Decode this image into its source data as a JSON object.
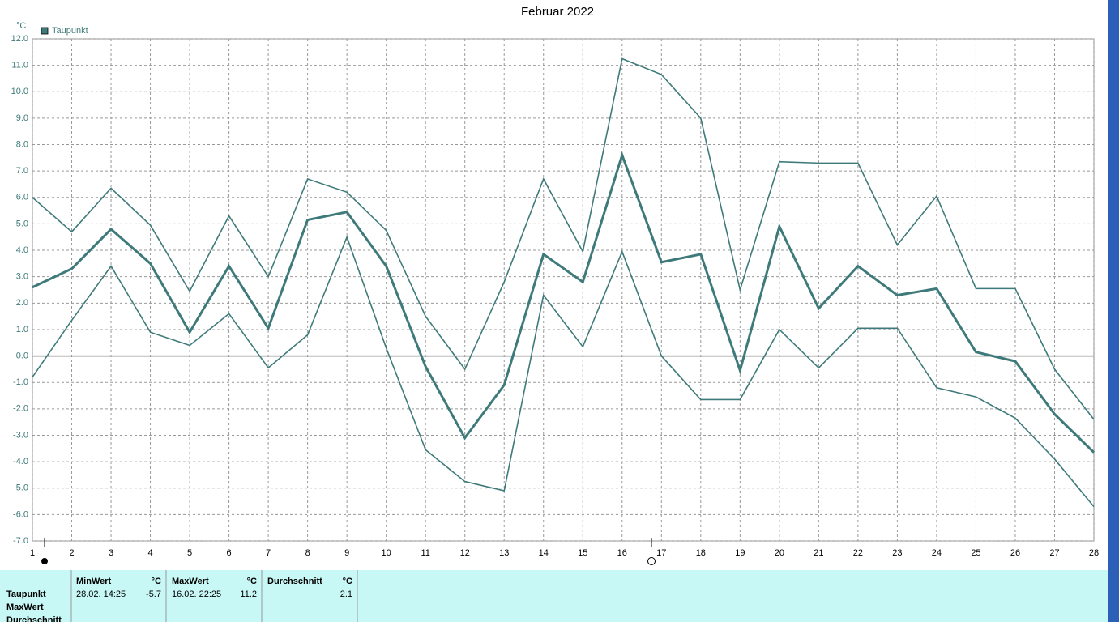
{
  "chart_data": {
    "type": "line",
    "title": "Februar 2022",
    "y_unit": "°C",
    "x": [
      1,
      2,
      3,
      4,
      5,
      6,
      7,
      8,
      9,
      10,
      11,
      12,
      13,
      14,
      15,
      16,
      17,
      18,
      19,
      20,
      21,
      22,
      23,
      24,
      25,
      26,
      27,
      28
    ],
    "xlim": [
      1,
      28
    ],
    "xticks": [
      1,
      2,
      3,
      4,
      5,
      6,
      7,
      8,
      9,
      10,
      11,
      12,
      13,
      14,
      15,
      16,
      17,
      18,
      19,
      20,
      21,
      22,
      23,
      24,
      25,
      26,
      27,
      28
    ],
    "ylim": [
      -7,
      12
    ],
    "yticks": [
      {
        "value": 12,
        "label": "12.0"
      },
      {
        "value": 11,
        "label": "11.0"
      },
      {
        "value": 10,
        "label": "10.0"
      },
      {
        "value": 9,
        "label": "9.0"
      },
      {
        "value": 8,
        "label": "8.0"
      },
      {
        "value": 7,
        "label": "7.0"
      },
      {
        "value": 6,
        "label": "6.0"
      },
      {
        "value": 5,
        "label": "5.0"
      },
      {
        "value": 4,
        "label": "4.0"
      },
      {
        "value": 3,
        "label": "3.0"
      },
      {
        "value": 2,
        "label": "2.0"
      },
      {
        "value": 1,
        "label": "1.0"
      },
      {
        "value": 0,
        "label": "0.0"
      },
      {
        "value": -1,
        "label": "-1.0"
      },
      {
        "value": -2,
        "label": "-2.0"
      },
      {
        "value": -3,
        "label": "-3.0"
      },
      {
        "value": -4,
        "label": "-4.0"
      },
      {
        "value": -5,
        "label": "-5.0"
      },
      {
        "value": -6,
        "label": "-6.0"
      },
      {
        "value": -7,
        "label": "-7.0"
      }
    ],
    "grid": true,
    "series": [
      {
        "name": "Taupunkt",
        "color": "#3f7a7a",
        "width": 3,
        "values": [
          2.6,
          3.3,
          4.8,
          3.5,
          0.9,
          3.4,
          1.05,
          5.15,
          5.45,
          3.4,
          -0.4,
          -3.1,
          -1.1,
          3.85,
          2.8,
          7.6,
          3.55,
          3.85,
          -0.55,
          4.9,
          1.8,
          3.4,
          2.3,
          2.55,
          0.15,
          -0.2,
          -2.2,
          -3.65
        ]
      },
      {
        "color": "#3f7a7a",
        "width": 1.6,
        "values": [
          6.0,
          4.7,
          6.35,
          4.95,
          2.45,
          5.3,
          3.0,
          6.7,
          6.2,
          4.75,
          1.5,
          -0.5,
          2.8,
          6.7,
          3.95,
          11.25,
          10.65,
          9.0,
          2.5,
          7.35,
          7.3,
          7.3,
          4.2,
          6.05,
          2.55,
          2.55,
          -0.5,
          -2.4
        ]
      },
      {
        "color": "#3f7a7a",
        "width": 1.6,
        "values": [
          -0.8,
          1.35,
          3.4,
          0.9,
          0.4,
          1.6,
          -0.45,
          0.8,
          4.5,
          0.3,
          -3.55,
          -4.75,
          -5.1,
          2.3,
          0.35,
          3.95,
          0.0,
          -1.65,
          -1.65,
          1.0,
          -0.45,
          1.05,
          1.05,
          -1.2,
          -1.55,
          -2.35,
          -3.9,
          -5.7
        ]
      }
    ]
  },
  "stats": {
    "row_labels": [
      "Taupunkt",
      "MaxWert",
      "Durchschnitt"
    ],
    "columns": [
      {
        "header": "MinWert",
        "unit": "°C",
        "time": "28.02.  14:25",
        "value": -5.7
      },
      {
        "header": "MaxWert",
        "unit": "°C",
        "time": "16.02.  22:25",
        "value": 11.2
      },
      {
        "header": "Durchschnitt",
        "unit": "°C",
        "value": 2.1
      }
    ]
  }
}
